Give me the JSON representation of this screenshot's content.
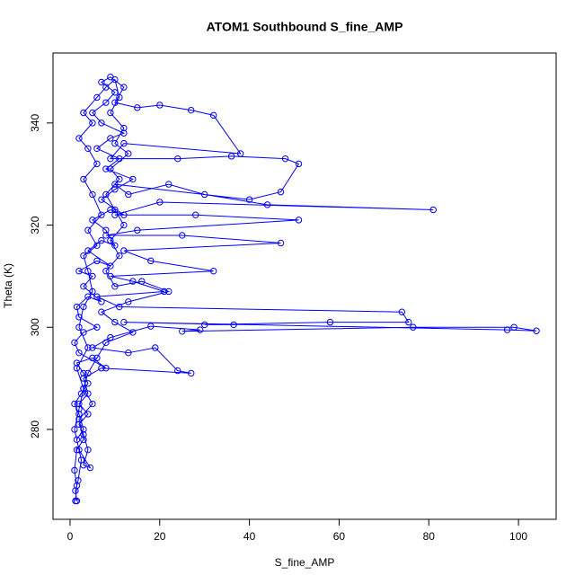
{
  "chart_data": {
    "type": "line",
    "title": "ATOM1 Southbound S_fine_AMP",
    "x_label": "S_fine_AMP",
    "y_label": "Theta (K)",
    "color": "#0000ff",
    "markers": true,
    "xlim": [
      -3.8,
      108.4
    ],
    "ylim": [
      262.4,
      353.7
    ],
    "xticks": [
      0,
      20,
      40,
      60,
      80,
      100
    ],
    "yticks": [
      280,
      300,
      320,
      340
    ],
    "x": [
      1.5,
      1.2,
      1.8,
      2.5,
      1.5,
      3,
      2,
      1,
      2.5,
      4,
      3,
      1.5,
      5,
      8,
      2,
      1,
      3,
      6,
      2,
      1.5,
      4,
      7,
      3,
      5,
      2,
      6,
      9,
      4,
      7,
      10,
      8,
      5,
      9,
      12,
      7,
      10,
      14,
      8,
      11,
      6,
      9,
      12,
      7,
      5,
      8,
      10,
      7,
      9,
      12,
      10,
      15,
      20,
      27,
      32,
      38,
      12,
      9,
      24,
      36,
      48,
      51,
      47,
      40,
      10,
      13,
      22,
      30,
      44,
      81,
      20,
      10,
      28,
      51,
      15,
      8,
      25,
      47,
      12,
      18,
      32,
      9,
      14,
      21,
      6,
      11,
      74,
      75.5,
      58,
      30,
      36.5,
      12,
      97.5,
      104,
      99,
      76.5,
      25,
      29,
      18,
      9,
      5,
      13,
      19,
      24,
      27,
      7,
      3,
      4,
      2,
      4,
      2,
      3,
      4,
      3,
      4.5,
      2,
      1,
      2,
      3,
      1.5,
      4,
      2,
      3,
      5,
      4,
      3,
      6,
      4,
      7,
      5,
      3,
      6,
      4,
      2,
      5,
      3,
      6,
      8,
      10,
      11,
      9,
      12,
      10,
      13,
      9,
      11,
      8,
      10,
      12,
      9,
      11,
      8,
      10,
      16,
      22,
      13,
      7,
      10,
      14,
      8,
      6,
      4,
      3,
      5,
      2,
      3,
      1.5,
      1,
      1.5,
      1.2
    ],
    "values": [
      266,
      268,
      270,
      274,
      278,
      280,
      283,
      285,
      287,
      289,
      291,
      293,
      294,
      292,
      295,
      297,
      299,
      300,
      302,
      304,
      306,
      305,
      308,
      310,
      311,
      313,
      312,
      315,
      317,
      316,
      319,
      321,
      323,
      322,
      325,
      327,
      329,
      331,
      333,
      335,
      337,
      338,
      340,
      342,
      344,
      346,
      348,
      349,
      347,
      344,
      343,
      343.5,
      342.5,
      341.5,
      334,
      336,
      333,
      333,
      333.5,
      333,
      332,
      326.5,
      325,
      328,
      326,
      328,
      326,
      324,
      323,
      324.5,
      322,
      322,
      321,
      319,
      318,
      318,
      316.5,
      315,
      313,
      311,
      310,
      309,
      307,
      306,
      304,
      303,
      301,
      301,
      300.5,
      300.5,
      301,
      299.5,
      299.3,
      300,
      300,
      299.2,
      299.5,
      300.2,
      298,
      296,
      295,
      296,
      291.5,
      291,
      292,
      290,
      287,
      285,
      283,
      281,
      279,
      276,
      273,
      272.5,
      276,
      280,
      284,
      288,
      292,
      296,
      300,
      304,
      307,
      311,
      314,
      316,
      319,
      322,
      326,
      329,
      332,
      335,
      337,
      340,
      342,
      345,
      347,
      348.5,
      345,
      342,
      339,
      336,
      334,
      331,
      329,
      326,
      323,
      320,
      317,
      314,
      311,
      308,
      309,
      307,
      305,
      303,
      301,
      299,
      297,
      294,
      291,
      288,
      285,
      282,
      278,
      276,
      272,
      269,
      266
    ]
  }
}
